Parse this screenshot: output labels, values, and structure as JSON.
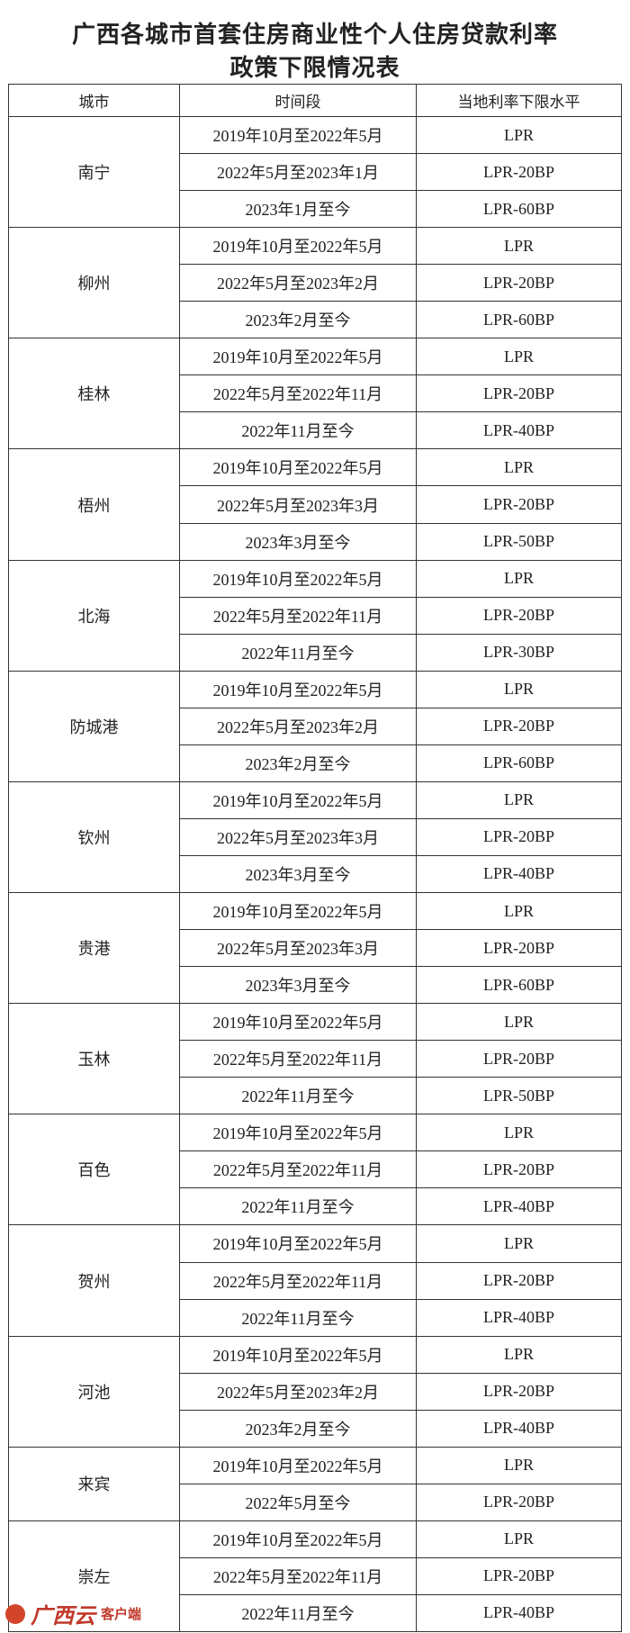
{
  "title": [
    "广西各城市首套住房商业性个人住房贷款利率",
    "政策下限情况表"
  ],
  "table": {
    "header": [
      "城市",
      "时间段",
      "当地利率下限水平"
    ],
    "groups": [
      {
        "city": "南宁",
        "rows": [
          [
            "2019年10月至2022年5月",
            "LPR"
          ],
          [
            "2022年5月至2023年1月",
            "LPR-20BP"
          ],
          [
            "2023年1月至今",
            "LPR-60BP"
          ]
        ]
      },
      {
        "city": "柳州",
        "rows": [
          [
            "2019年10月至2022年5月",
            "LPR"
          ],
          [
            "2022年5月至2023年2月",
            "LPR-20BP"
          ],
          [
            "2023年2月至今",
            "LPR-60BP"
          ]
        ]
      },
      {
        "city": "桂林",
        "rows": [
          [
            "2019年10月至2022年5月",
            "LPR"
          ],
          [
            "2022年5月至2022年11月",
            "LPR-20BP"
          ],
          [
            "2022年11月至今",
            "LPR-40BP"
          ]
        ]
      },
      {
        "city": "梧州",
        "rows": [
          [
            "2019年10月至2022年5月",
            "LPR"
          ],
          [
            "2022年5月至2023年3月",
            "LPR-20BP"
          ],
          [
            "2023年3月至今",
            "LPR-50BP"
          ]
        ]
      },
      {
        "city": "北海",
        "rows": [
          [
            "2019年10月至2022年5月",
            "LPR"
          ],
          [
            "2022年5月至2022年11月",
            "LPR-20BP"
          ],
          [
            "2022年11月至今",
            "LPR-30BP"
          ]
        ]
      },
      {
        "city": "防城港",
        "rows": [
          [
            "2019年10月至2022年5月",
            "LPR"
          ],
          [
            "2022年5月至2023年2月",
            "LPR-20BP"
          ],
          [
            "2023年2月至今",
            "LPR-60BP"
          ]
        ]
      },
      {
        "city": "钦州",
        "rows": [
          [
            "2019年10月至2022年5月",
            "LPR"
          ],
          [
            "2022年5月至2023年3月",
            "LPR-20BP"
          ],
          [
            "2023年3月至今",
            "LPR-40BP"
          ]
        ]
      },
      {
        "city": "贵港",
        "rows": [
          [
            "2019年10月至2022年5月",
            "LPR"
          ],
          [
            "2022年5月至2023年3月",
            "LPR-20BP"
          ],
          [
            "2023年3月至今",
            "LPR-60BP"
          ]
        ]
      },
      {
        "city": "玉林",
        "rows": [
          [
            "2019年10月至2022年5月",
            "LPR"
          ],
          [
            "2022年5月至2022年11月",
            "LPR-20BP"
          ],
          [
            "2022年11月至今",
            "LPR-50BP"
          ]
        ]
      },
      {
        "city": "百色",
        "rows": [
          [
            "2019年10月至2022年5月",
            "LPR"
          ],
          [
            "2022年5月至2022年11月",
            "LPR-20BP"
          ],
          [
            "2022年11月至今",
            "LPR-40BP"
          ]
        ]
      },
      {
        "city": "贺州",
        "rows": [
          [
            "2019年10月至2022年5月",
            "LPR"
          ],
          [
            "2022年5月至2022年11月",
            "LPR-20BP"
          ],
          [
            "2022年11月至今",
            "LPR-40BP"
          ]
        ]
      },
      {
        "city": "河池",
        "rows": [
          [
            "2019年10月至2022年5月",
            "LPR"
          ],
          [
            "2022年5月至2023年2月",
            "LPR-20BP"
          ],
          [
            "2023年2月至今",
            "LPR-40BP"
          ]
        ]
      },
      {
        "city": "来宾",
        "rows": [
          [
            "2019年10月至2022年5月",
            "LPR"
          ],
          [
            "2022年5月至今",
            "LPR-20BP"
          ]
        ]
      },
      {
        "city": "崇左",
        "rows": [
          [
            "2019年10月至2022年5月",
            "LPR"
          ],
          [
            "2022年5月至2022年11月",
            "LPR-20BP"
          ],
          [
            "2022年11月至今",
            "LPR-40BP"
          ]
        ]
      }
    ]
  },
  "watermark": {
    "brand": "广西云",
    "suffix": "客户端"
  }
}
